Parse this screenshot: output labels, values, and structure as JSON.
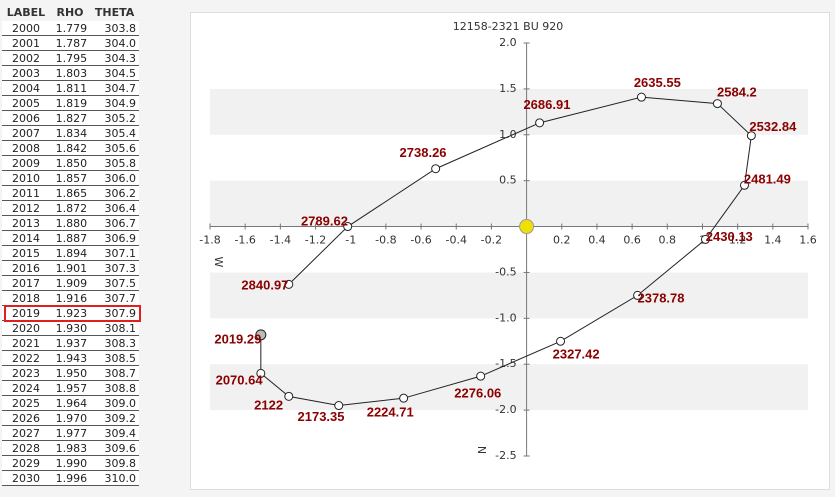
{
  "table": {
    "columns": [
      "LABEL",
      "RHO",
      "THETA"
    ],
    "rows": [
      [
        "2000",
        "1.779",
        "303.8"
      ],
      [
        "2001",
        "1.787",
        "304.0"
      ],
      [
        "2002",
        "1.795",
        "304.3"
      ],
      [
        "2003",
        "1.803",
        "304.5"
      ],
      [
        "2004",
        "1.811",
        "304.7"
      ],
      [
        "2005",
        "1.819",
        "304.9"
      ],
      [
        "2006",
        "1.827",
        "305.2"
      ],
      [
        "2007",
        "1.834",
        "305.4"
      ],
      [
        "2008",
        "1.842",
        "305.6"
      ],
      [
        "2009",
        "1.850",
        "305.8"
      ],
      [
        "2010",
        "1.857",
        "306.0"
      ],
      [
        "2011",
        "1.865",
        "306.2"
      ],
      [
        "2012",
        "1.872",
        "306.4"
      ],
      [
        "2013",
        "1.880",
        "306.7"
      ],
      [
        "2014",
        "1.887",
        "306.9"
      ],
      [
        "2015",
        "1.894",
        "307.1"
      ],
      [
        "2016",
        "1.901",
        "307.3"
      ],
      [
        "2017",
        "1.909",
        "307.5"
      ],
      [
        "2018",
        "1.916",
        "307.7"
      ],
      [
        "2019",
        "1.923",
        "307.9"
      ],
      [
        "2020",
        "1.930",
        "308.1"
      ],
      [
        "2021",
        "1.937",
        "308.3"
      ],
      [
        "2022",
        "1.943",
        "308.5"
      ],
      [
        "2023",
        "1.950",
        "308.7"
      ],
      [
        "2024",
        "1.957",
        "308.8"
      ],
      [
        "2025",
        "1.964",
        "309.0"
      ],
      [
        "2026",
        "1.970",
        "309.2"
      ],
      [
        "2027",
        "1.977",
        "309.4"
      ],
      [
        "2028",
        "1.983",
        "309.6"
      ],
      [
        "2029",
        "1.990",
        "309.8"
      ],
      [
        "2030",
        "1.996",
        "310.0"
      ]
    ],
    "selected_row": 19
  },
  "chart_data": {
    "type": "line",
    "title": "12158-2321 BU  920",
    "x_label": "W",
    "y_label": "N",
    "x": [
      -1.352,
      -1.017,
      -0.517,
      0.074,
      0.653,
      1.085,
      1.278,
      1.239,
      1.017,
      0.631,
      0.193,
      -0.261,
      -0.699,
      -1.068,
      -1.352,
      -1.511,
      -1.511
    ],
    "values": [
      -0.63,
      0.0,
      0.63,
      1.13,
      1.41,
      1.34,
      0.99,
      0.45,
      -0.14,
      -0.75,
      -1.25,
      -1.63,
      -1.87,
      -1.95,
      -1.85,
      -1.6,
      -1.18
    ],
    "point_labels": [
      "2840.97",
      "2789.62",
      "2738.26",
      "2686.91",
      "2635.55",
      "2584.2",
      "2532.84",
      "2481.49",
      "2430.13",
      "2378.78",
      "2327.42",
      "2276.06",
      "2224.71",
      "2173.35",
      "2122",
      "2070.64",
      "2019.29"
    ],
    "xlim": [
      -1.8,
      1.6
    ],
    "ylim": [
      -2.5,
      2.0
    ],
    "xticks": [
      -1.8,
      -1.6,
      -1.4,
      -1.2,
      -1,
      -0.8,
      -0.6,
      -0.4,
      -0.2,
      0.2,
      0.4,
      0.6,
      0.8,
      1,
      1.2,
      1.4,
      1.6
    ],
    "yticks": [
      {
        "value": 2,
        "label": "2.0"
      },
      1.5,
      {
        "value": 1,
        "label": "1.0"
      },
      0.5,
      -0.5,
      {
        "value": -1,
        "label": "-1.0"
      },
      -1.5,
      {
        "value": -2,
        "label": "-2.0"
      },
      -2.5
    ],
    "grid": true,
    "color": "#222222",
    "label_color": "#8b0000"
  }
}
